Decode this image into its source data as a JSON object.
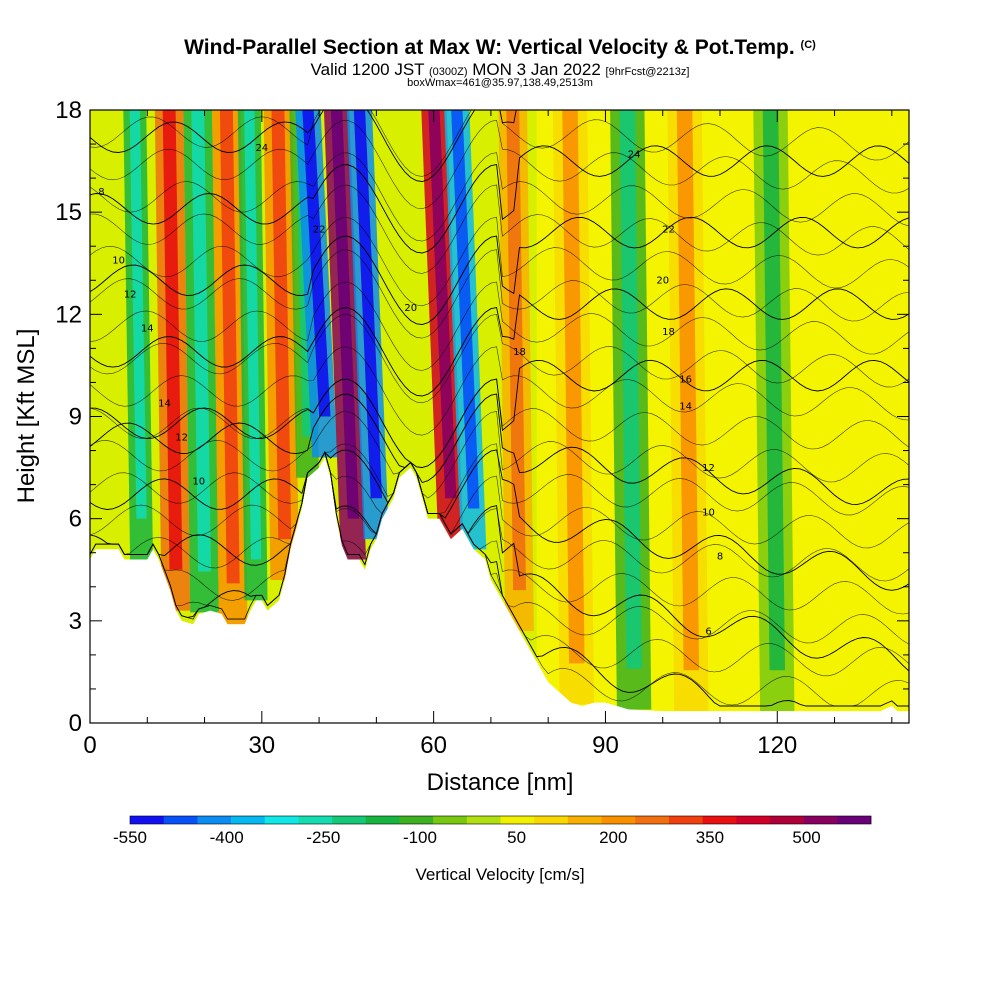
{
  "header": {
    "title": "Wind-Parallel Section at Max W: Vertical Velocity & Pot.Temp.",
    "title_mark": "(C)",
    "subtitle_main": "Valid 1200 JST",
    "subtitle_utc": "(0300Z)",
    "subtitle_date": "MON 3 Jan 2022",
    "subtitle_fcst": "[9hrFcst@2213z]",
    "subtitle2": "boxWmax=461@35.97,138.49,2513m"
  },
  "chart_data": {
    "type": "heatmap",
    "title": "Wind-Parallel Section at Max W: Vertical Velocity & Pot.Temp.",
    "xlabel": "Distance [nm]",
    "ylabel": "Height [Kft MSL]",
    "xlim": [
      0,
      143
    ],
    "ylim": [
      0,
      18
    ],
    "x_ticks": [
      "0",
      "30",
      "60",
      "90",
      "120"
    ],
    "y_ticks": [
      "0",
      "3",
      "6",
      "9",
      "12",
      "15",
      "18"
    ],
    "x_tick_values": [
      0,
      30,
      60,
      90,
      120
    ],
    "y_tick_values": [
      0,
      3,
      6,
      9,
      12,
      15,
      18
    ],
    "colorbar": {
      "label": "Vertical Velocity [cm/s]",
      "min": -550,
      "max": 600,
      "tick_labels": [
        "-550",
        "-400",
        "-250",
        "-100",
        "50",
        "200",
        "350",
        "500"
      ],
      "tick_values": [
        -550,
        -400,
        -250,
        -100,
        50,
        200,
        350,
        500
      ],
      "colors": [
        "#1010f0",
        "#0850f8",
        "#0a8cf0",
        "#06b8f0",
        "#10e8e8",
        "#12dcb0",
        "#14c878",
        "#18b440",
        "#3cb020",
        "#78c810",
        "#b0e010",
        "#f0f000",
        "#f8d800",
        "#f8b000",
        "#f89000",
        "#f07010",
        "#f04010",
        "#e81010",
        "#d00028",
        "#b00038",
        "#880060",
        "#6a0078"
      ]
    },
    "terrain": [
      {
        "x": 0,
        "h": 4.8
      },
      {
        "x": 1,
        "h": 5.1
      },
      {
        "x": 5,
        "h": 5.1
      },
      {
        "x": 6,
        "h": 4.8
      },
      {
        "x": 10,
        "h": 4.8
      },
      {
        "x": 11,
        "h": 5.1
      },
      {
        "x": 12,
        "h": 4.8
      },
      {
        "x": 14,
        "h": 3.9
      },
      {
        "x": 15,
        "h": 3.3
      },
      {
        "x": 16,
        "h": 3.0
      },
      {
        "x": 18,
        "h": 2.9
      },
      {
        "x": 19,
        "h": 3.2
      },
      {
        "x": 21,
        "h": 3.3
      },
      {
        "x": 23,
        "h": 3.2
      },
      {
        "x": 24,
        "h": 2.9
      },
      {
        "x": 27,
        "h": 2.9
      },
      {
        "x": 28,
        "h": 3.3
      },
      {
        "x": 29,
        "h": 3.6
      },
      {
        "x": 30,
        "h": 3.6
      },
      {
        "x": 31,
        "h": 3.3
      },
      {
        "x": 33,
        "h": 3.6
      },
      {
        "x": 34,
        "h": 4.2
      },
      {
        "x": 35,
        "h": 5.1
      },
      {
        "x": 36,
        "h": 5.7
      },
      {
        "x": 37,
        "h": 6.3
      },
      {
        "x": 38,
        "h": 7.2
      },
      {
        "x": 40,
        "h": 7.5
      },
      {
        "x": 41,
        "h": 7.8
      },
      {
        "x": 42,
        "h": 7.2
      },
      {
        "x": 43,
        "h": 6.0
      },
      {
        "x": 44,
        "h": 5.2
      },
      {
        "x": 45,
        "h": 4.8
      },
      {
        "x": 47,
        "h": 4.8
      },
      {
        "x": 48,
        "h": 4.5
      },
      {
        "x": 49,
        "h": 5.1
      },
      {
        "x": 50,
        "h": 5.4
      },
      {
        "x": 51,
        "h": 6.0
      },
      {
        "x": 52,
        "h": 6.3
      },
      {
        "x": 53,
        "h": 6.6
      },
      {
        "x": 54,
        "h": 7.2
      },
      {
        "x": 56,
        "h": 7.5
      },
      {
        "x": 57,
        "h": 7.2
      },
      {
        "x": 58,
        "h": 6.6
      },
      {
        "x": 59,
        "h": 6.0
      },
      {
        "x": 61,
        "h": 6.0
      },
      {
        "x": 62,
        "h": 5.7
      },
      {
        "x": 63,
        "h": 5.4
      },
      {
        "x": 65,
        "h": 5.7
      },
      {
        "x": 66,
        "h": 5.4
      },
      {
        "x": 67,
        "h": 5.1
      },
      {
        "x": 69,
        "h": 4.8
      },
      {
        "x": 70,
        "h": 4.2
      },
      {
        "x": 72,
        "h": 3.6
      },
      {
        "x": 74,
        "h": 3.0
      },
      {
        "x": 76,
        "h": 2.4
      },
      {
        "x": 78,
        "h": 1.8
      },
      {
        "x": 80,
        "h": 1.2
      },
      {
        "x": 82,
        "h": 0.9
      },
      {
        "x": 84,
        "h": 0.6
      },
      {
        "x": 86,
        "h": 0.5
      },
      {
        "x": 88,
        "h": 0.6
      },
      {
        "x": 90,
        "h": 0.6
      },
      {
        "x": 94,
        "h": 0.4
      },
      {
        "x": 100,
        "h": 0.35
      },
      {
        "x": 110,
        "h": 0.35
      },
      {
        "x": 120,
        "h": 0.35
      },
      {
        "x": 130,
        "h": 0.35
      },
      {
        "x": 138,
        "h": 0.35
      },
      {
        "x": 140,
        "h": 0.5
      },
      {
        "x": 141,
        "h": 0.35
      },
      {
        "x": 143,
        "h": 0.35
      }
    ],
    "vertical_velocity_bands": [
      {
        "x": 15,
        "w": 2.5,
        "value": 250
      },
      {
        "x": 9,
        "w": 2,
        "value": -150
      },
      {
        "x": 20,
        "w": 2.5,
        "value": -150
      },
      {
        "x": 25,
        "w": 2.5,
        "value": 200
      },
      {
        "x": 29,
        "w": 2,
        "value": -150
      },
      {
        "x": 34,
        "w": 2.5,
        "value": 200
      },
      {
        "x": 38,
        "w": 2,
        "value": -100
      },
      {
        "x": 41,
        "w": 2.2,
        "value": -400
      },
      {
        "x": 46,
        "w": 2.2,
        "value": 500
      },
      {
        "x": 50,
        "w": 2.2,
        "value": -400
      },
      {
        "x": 63,
        "w": 2.2,
        "value": 400
      },
      {
        "x": 67,
        "w": 2.2,
        "value": -350
      },
      {
        "x": 75,
        "w": 2.5,
        "value": 150
      },
      {
        "x": 85,
        "w": 3,
        "value": 100
      },
      {
        "x": 95,
        "w": 3,
        "value": -100
      },
      {
        "x": 105,
        "w": 3,
        "value": 100
      },
      {
        "x": 120,
        "w": 3,
        "value": -50
      }
    ],
    "theta_contours": [
      {
        "level": 6
      },
      {
        "level": 8
      },
      {
        "level": 10
      },
      {
        "level": 12
      },
      {
        "level": 14
      },
      {
        "level": 16
      },
      {
        "level": 18
      },
      {
        "level": 20
      },
      {
        "level": 22
      },
      {
        "level": 24
      }
    ],
    "contour_labels": [
      "24",
      "22",
      "20",
      "18",
      "16",
      "14",
      "12",
      "10",
      "8",
      "6"
    ]
  }
}
